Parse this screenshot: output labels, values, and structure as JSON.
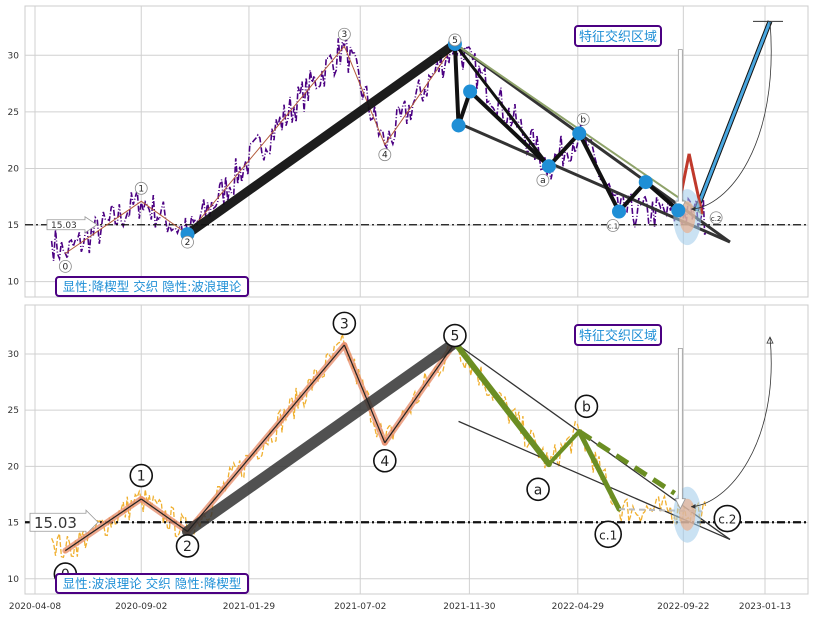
{
  "chart_data": [
    {
      "type": "line",
      "panel": "top",
      "x_ticks": [
        "2020-04-08",
        "2020-09-02",
        "2021-01-29",
        "2021-07-02",
        "2021-11-30",
        "2022-04-29",
        "2022-09-22",
        "2023-01-13"
      ],
      "y_ticks": [
        10,
        15,
        20,
        25,
        30
      ],
      "ylim": [
        9,
        34
      ],
      "hline": {
        "value": 15.03,
        "label": "15.03"
      },
      "annotation_box_text": "显性:降楔型 交织 隐性:波浪理论",
      "region_label": "特征交织区域",
      "wave_points": [
        {
          "label": "0",
          "date": "2020-05-20",
          "value": 12.5
        },
        {
          "label": "1",
          "date": "2020-09-02",
          "value": 17.1
        },
        {
          "label": "2",
          "date": "2020-11-05",
          "value": 14.2
        },
        {
          "label": "3",
          "date": "2021-06-10",
          "value": 30.8
        },
        {
          "label": "4",
          "date": "2021-08-05",
          "value": 22.1
        },
        {
          "label": "5",
          "date": "2021-11-10",
          "value": 31.0
        },
        {
          "label": "a",
          "date": "2022-03-20",
          "value": 20.2
        },
        {
          "label": "b",
          "date": "2022-05-01",
          "value": 23.1
        },
        {
          "label": "c.1",
          "date": "2022-06-25",
          "value": 16.2
        },
        {
          "label": "c.2",
          "date": "2022-10-18",
          "value": 16.0
        }
      ],
      "markers": [
        {
          "date": "2020-11-05",
          "value": 14.2
        },
        {
          "date": "2021-11-10",
          "value": 31.0
        },
        {
          "date": "2021-11-15",
          "value": 23.8
        },
        {
          "date": "2021-12-01",
          "value": 26.8
        },
        {
          "date": "2022-03-20",
          "value": 20.2
        },
        {
          "date": "2022-05-01",
          "value": 23.1
        },
        {
          "date": "2022-06-25",
          "value": 16.2
        },
        {
          "date": "2022-08-01",
          "value": 18.8
        },
        {
          "date": "2022-09-15",
          "value": 16.3
        }
      ],
      "target_point": {
        "date": "2023-01-13",
        "value": 33.0
      }
    },
    {
      "type": "line",
      "panel": "bottom",
      "x_ticks": [
        "2020-04-08",
        "2020-09-02",
        "2021-01-29",
        "2021-07-02",
        "2021-11-30",
        "2022-04-29",
        "2022-09-22",
        "2023-01-13"
      ],
      "y_ticks": [
        10,
        15,
        20,
        25,
        30
      ],
      "ylim": [
        9,
        34
      ],
      "hline": {
        "value": 15.03,
        "label": "15.03"
      },
      "annotation_box_text": "显性:波浪理论 交织 隐性:降楔型",
      "region_label": "特征交织区域",
      "wave_points": [
        {
          "label": "0",
          "date": "2020-05-20",
          "value": 12.5
        },
        {
          "label": "1",
          "date": "2020-09-02",
          "value": 17.1
        },
        {
          "label": "2",
          "date": "2020-11-05",
          "value": 14.2
        },
        {
          "label": "3",
          "date": "2021-06-10",
          "value": 30.8
        },
        {
          "label": "4",
          "date": "2021-08-05",
          "value": 22.1
        },
        {
          "label": "5",
          "date": "2021-11-10",
          "value": 31.0
        },
        {
          "label": "a",
          "date": "2022-03-20",
          "value": 20.2
        },
        {
          "label": "b",
          "date": "2022-05-01",
          "value": 23.1
        },
        {
          "label": "c.1",
          "date": "2022-06-25",
          "value": 16.2
        },
        {
          "label": "c.2",
          "date": "2022-10-18",
          "value": 16.0
        }
      ]
    }
  ],
  "colors": {
    "top_price": "#4b0082",
    "bottom_price": "#f0b030",
    "marker": "#1f8fd6",
    "label_text": "#1f8fd6",
    "label_border": "#4b0082",
    "wave_up": "#e89070",
    "wave_green": "#6b8e23",
    "wedge_dark": "#222222",
    "ellipse": "#9fcbea"
  }
}
